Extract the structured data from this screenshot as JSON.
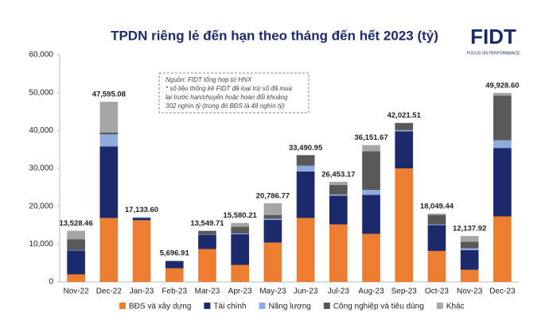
{
  "chart_data": {
    "type": "stacked_bar",
    "title": "TPDN riêng lẻ đến hạn theo tháng đến hết 2023 (tỷ)",
    "logo": "FIDT",
    "logo_tagline": "FOCUS ON PERFORMANCE",
    "annotation": [
      "Nguồn: FIDT tổng hợp từ HNX",
      "* số liệu thống kê FIDT đã loại trừ số đã mua",
      "lại trước hạn/chuyển hoặc hoàn đổi khoảng",
      "302 nghìn tỷ (trong đó BĐS là 48 nghìn tỷ)"
    ],
    "categories": [
      "Nov-22",
      "Dec-22",
      "Jan-23",
      "Feb-23",
      "Mar-23",
      "Apr-23",
      "May-23",
      "Jun-23",
      "Jul-23",
      "Aug-23",
      "Sep-23",
      "Oct-23",
      "Nov-23",
      "Dec-23"
    ],
    "series": [
      {
        "name": "BĐS và xây dựng",
        "color": "#ed7d31",
        "values": [
          2000,
          16900,
          16300,
          3600,
          8700,
          4500,
          10400,
          16900,
          15200,
          12700,
          30000,
          8200,
          3200,
          17300
        ]
      },
      {
        "name": "Tài chính",
        "color": "#1c2a6b",
        "values": [
          6300,
          18900,
          600,
          1900,
          3800,
          8100,
          6000,
          12300,
          7600,
          10300,
          9800,
          6800,
          5200,
          18100
        ]
      },
      {
        "name": "Năng lượng",
        "color": "#8faadc",
        "values": [
          100,
          3200,
          200,
          100,
          100,
          200,
          300,
          1500,
          300,
          1300,
          300,
          200,
          500,
          2000
        ]
      },
      {
        "name": "Công nghiệp và tiêu dùng",
        "color": "#595959",
        "values": [
          2900,
          500,
          0,
          0,
          900,
          1800,
          1000,
          2800,
          2500,
          10200,
          1900,
          2500,
          1700,
          11800
        ]
      },
      {
        "name": "Khác",
        "color": "#a6a6a6",
        "values": [
          2228,
          8095,
          33,
          97,
          50,
          980,
          3087,
          0,
          853,
          1652,
          0,
          349,
          1538,
          729
        ]
      }
    ],
    "totals": [
      13528.46,
      47595.08,
      17133.6,
      5696.91,
      13549.71,
      15580.21,
      20786.77,
      33490.95,
      26453.17,
      36151.67,
      42021.51,
      18049.44,
      12137.92,
      49928.6
    ],
    "total_labels": [
      "13,528.46",
      "47,595.08",
      "17,133.60",
      "5,696.91",
      "13,549.71",
      "15,580.21",
      "20,786.77",
      "33,490.95",
      "26,453.17",
      "36,151.67",
      "42,021.51",
      "18,049.44",
      "12,137.92",
      "49,928.60"
    ],
    "ylim": [
      0,
      60000
    ],
    "yticks": [
      0,
      {
        "value": 10000,
        "label": "10,000"
      },
      {
        "value": 20000,
        "label": "20,000"
      },
      {
        "value": 30000,
        "label": "30,000"
      },
      {
        "value": 40000,
        "label": "40,000"
      },
      {
        "value": 50000,
        "label": "50,000"
      },
      {
        "value": 60000,
        "label": "60,000"
      }
    ],
    "grid": false,
    "legend": "bottom"
  }
}
